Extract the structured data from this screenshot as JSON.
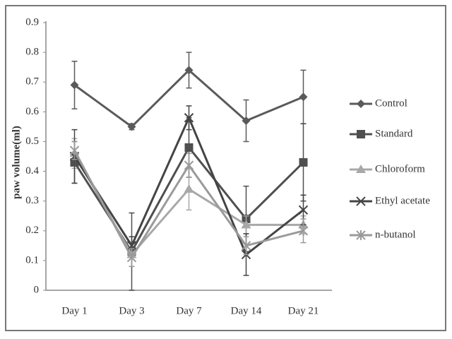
{
  "chart_data": {
    "type": "line",
    "y_label": "paw volume(ml)",
    "categories": [
      "Day 1",
      "Day 3",
      "Day 7",
      "Day 14",
      "Day 21"
    ],
    "ylim": [
      0,
      0.9
    ],
    "yticks": [
      0,
      0.1,
      0.2,
      0.3,
      0.4,
      0.5,
      0.6,
      0.7,
      0.8,
      0.9
    ],
    "grid": false,
    "legend": "right",
    "series": [
      {
        "name": "Control",
        "color": "#5a5a5a",
        "marker": "diamond",
        "values": [
          0.69,
          0.55,
          0.74,
          0.57,
          0.65
        ],
        "errors": [
          0.08,
          0.01,
          0.06,
          0.07,
          0.09
        ]
      },
      {
        "name": "Standard",
        "color": "#4f4f4f",
        "marker": "square",
        "values": [
          0.43,
          0.13,
          0.48,
          0.24,
          0.43
        ],
        "errors": [
          0.07,
          0.13,
          0.1,
          0.11,
          0.13
        ]
      },
      {
        "name": "Chloroform",
        "color": "#a8a8a8",
        "marker": "triangle",
        "values": [
          0.46,
          0.12,
          0.34,
          0.22,
          0.22
        ],
        "errors": [
          0.05,
          0.04,
          0.07,
          0.03,
          0.03
        ]
      },
      {
        "name": "Ethyl acetate",
        "color": "#444444",
        "marker": "x",
        "values": [
          0.45,
          0.15,
          0.58,
          0.12,
          0.27
        ],
        "errors": [
          0.09,
          0.03,
          0.04,
          0.07,
          0.05
        ]
      },
      {
        "name": "n-butanol",
        "color": "#9a9a9a",
        "marker": "star",
        "values": [
          0.47,
          0.11,
          0.42,
          0.15,
          0.2
        ],
        "errors": [
          0.03,
          0.03,
          0.04,
          0.03,
          0.04
        ]
      }
    ]
  }
}
